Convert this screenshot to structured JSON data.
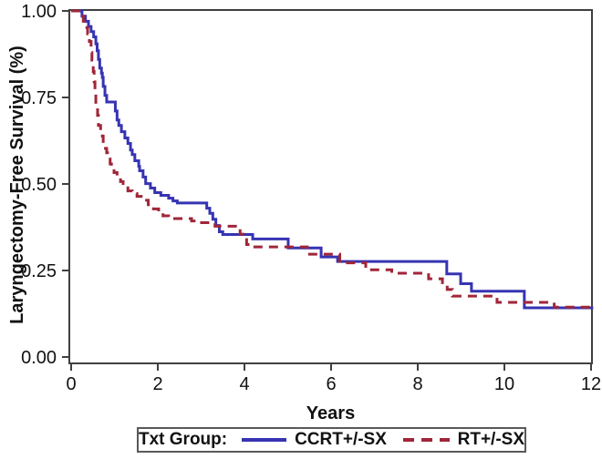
{
  "figure": {
    "background": "#ffffff"
  },
  "legend": {
    "title": "Txt Group:"
  },
  "style": {
    "axis_color": "#404040",
    "text_color": "#111111",
    "legend_border": "#595959",
    "ccrt_color": "#3634b2",
    "rt_color": "#a02639"
  },
  "chart_data": {
    "type": "line",
    "subtype": "kaplan-meier-step",
    "title": "",
    "xlabel": "Years",
    "ylabel": "Laryngectomy-Free Survival (%)",
    "xlim": [
      0,
      12
    ],
    "ylim": [
      0.0,
      1.0
    ],
    "x_ticks": [
      "0",
      "2",
      "4",
      "6",
      "8",
      "10",
      "12"
    ],
    "y_ticks": [
      "0.00",
      "0.25",
      "0.50",
      "0.75",
      "1.00"
    ],
    "grid": false,
    "legend_position": "bottom",
    "series": [
      {
        "name": "CCRT+/-SX",
        "color": "#3634b2",
        "line_style": "solid",
        "end": 12.05,
        "steps": [
          [
            0,
            1.0
          ],
          [
            0.25,
            0.985
          ],
          [
            0.33,
            0.97
          ],
          [
            0.4,
            0.955
          ],
          [
            0.46,
            0.94
          ],
          [
            0.52,
            0.925
          ],
          [
            0.57,
            0.905
          ],
          [
            0.6,
            0.885
          ],
          [
            0.63,
            0.86
          ],
          [
            0.66,
            0.835
          ],
          [
            0.7,
            0.82
          ],
          [
            0.72,
            0.808
          ],
          [
            0.74,
            0.782
          ],
          [
            0.78,
            0.756
          ],
          [
            0.82,
            0.737
          ],
          [
            1.02,
            0.711
          ],
          [
            1.06,
            0.685
          ],
          [
            1.1,
            0.669
          ],
          [
            1.16,
            0.651
          ],
          [
            1.24,
            0.633
          ],
          [
            1.31,
            0.617
          ],
          [
            1.37,
            0.598
          ],
          [
            1.41,
            0.585
          ],
          [
            1.47,
            0.567
          ],
          [
            1.56,
            0.551
          ],
          [
            1.58,
            0.538
          ],
          [
            1.66,
            0.52
          ],
          [
            1.72,
            0.501
          ],
          [
            1.83,
            0.488
          ],
          [
            1.93,
            0.475
          ],
          [
            2.07,
            0.467
          ],
          [
            2.25,
            0.459
          ],
          [
            2.35,
            0.451
          ],
          [
            2.45,
            0.445
          ],
          [
            3.13,
            0.43
          ],
          [
            3.2,
            0.415
          ],
          [
            3.27,
            0.398
          ],
          [
            3.34,
            0.38
          ],
          [
            3.42,
            0.362
          ],
          [
            3.5,
            0.354
          ],
          [
            4.19,
            0.341
          ],
          [
            5.01,
            0.315
          ],
          [
            5.77,
            0.289
          ],
          [
            6.15,
            0.276
          ],
          [
            8.67,
            0.24
          ],
          [
            8.99,
            0.212
          ],
          [
            9.24,
            0.19
          ],
          [
            10.46,
            0.142
          ]
        ]
      },
      {
        "name": "RT+/-SX",
        "color": "#a02639",
        "line_style": "dashed",
        "end": 12.1,
        "steps": [
          [
            0,
            1.0
          ],
          [
            0.22,
            0.985
          ],
          [
            0.28,
            0.97
          ],
          [
            0.33,
            0.952
          ],
          [
            0.38,
            0.934
          ],
          [
            0.42,
            0.912
          ],
          [
            0.46,
            0.88
          ],
          [
            0.48,
            0.858
          ],
          [
            0.51,
            0.825
          ],
          [
            0.53,
            0.795
          ],
          [
            0.55,
            0.764
          ],
          [
            0.57,
            0.73
          ],
          [
            0.61,
            0.698
          ],
          [
            0.63,
            0.669
          ],
          [
            0.68,
            0.65
          ],
          [
            0.72,
            0.638
          ],
          [
            0.74,
            0.617
          ],
          [
            0.79,
            0.603
          ],
          [
            0.82,
            0.59
          ],
          [
            0.84,
            0.572
          ],
          [
            0.9,
            0.558
          ],
          [
            0.93,
            0.551
          ],
          [
            0.99,
            0.533
          ],
          [
            1.06,
            0.52
          ],
          [
            1.14,
            0.507
          ],
          [
            1.2,
            0.494
          ],
          [
            1.31,
            0.48
          ],
          [
            1.41,
            0.472
          ],
          [
            1.52,
            0.464
          ],
          [
            1.66,
            0.453
          ],
          [
            1.78,
            0.44
          ],
          [
            1.9,
            0.428
          ],
          [
            2.02,
            0.417
          ],
          [
            2.12,
            0.408
          ],
          [
            2.25,
            0.4
          ],
          [
            2.78,
            0.393
          ],
          [
            2.95,
            0.388
          ],
          [
            3.32,
            0.378
          ],
          [
            3.9,
            0.355
          ],
          [
            4.05,
            0.325
          ],
          [
            4.2,
            0.318
          ],
          [
            5.45,
            0.297
          ],
          [
            6.2,
            0.272
          ],
          [
            6.8,
            0.252
          ],
          [
            7.4,
            0.242
          ],
          [
            8.25,
            0.226
          ],
          [
            8.57,
            0.21
          ],
          [
            8.68,
            0.195
          ],
          [
            8.8,
            0.176
          ],
          [
            9.83,
            0.158
          ],
          [
            11.15,
            0.144
          ]
        ]
      }
    ]
  }
}
